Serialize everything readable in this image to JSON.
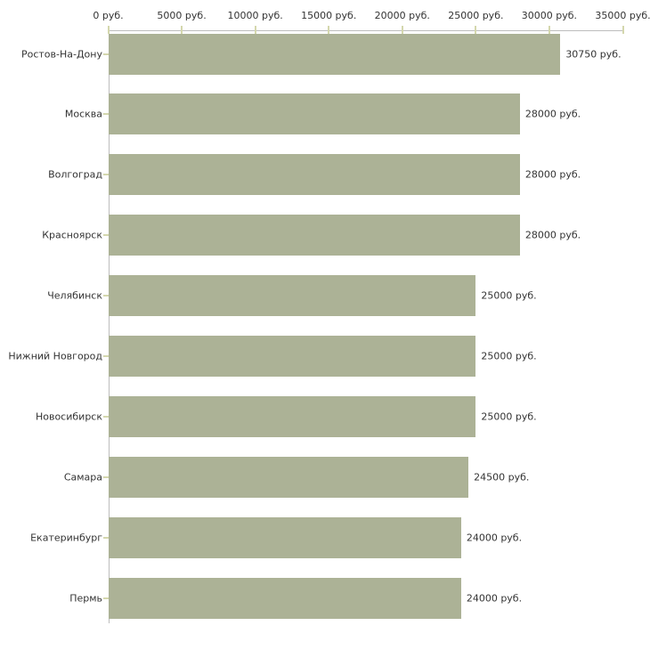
{
  "chart_data": {
    "type": "bar",
    "orientation": "horizontal",
    "title": "",
    "xlabel": "",
    "ylabel": "",
    "legend": "none",
    "grid": false,
    "axis_position": "top",
    "categories": [
      "Ростов-На-Дону",
      "Москва",
      "Волгоград",
      "Красноярск",
      "Челябинск",
      "Нижний Новгород",
      "Новосибирск",
      "Самара",
      "Екатеринбург",
      "Пермь"
    ],
    "values": [
      30750,
      28000,
      28000,
      28000,
      25000,
      25000,
      25000,
      24500,
      24000,
      24000
    ],
    "value_labels": [
      "30750 руб.",
      "28000 руб.",
      "28000 руб.",
      "28000 руб.",
      "25000 руб.",
      "25000 руб.",
      "25000 руб.",
      "24500 руб.",
      "24000 руб.",
      "24000 руб."
    ],
    "x_axis": {
      "min": 0,
      "max": 35000,
      "ticks": [
        0,
        5000,
        10000,
        15000,
        20000,
        25000,
        30000,
        35000
      ],
      "tick_labels": [
        "0 руб.",
        "5000 руб.",
        "10000 руб.",
        "15000 руб.",
        "20000 руб.",
        "25000 руб.",
        "30000 руб.",
        "35000 руб."
      ]
    },
    "colors": {
      "bar_fill": "#acb296",
      "axis_line": "#bdbdbd",
      "tick_mark": "#d4d7ad",
      "text": "#333333",
      "background": "#ffffff"
    }
  }
}
